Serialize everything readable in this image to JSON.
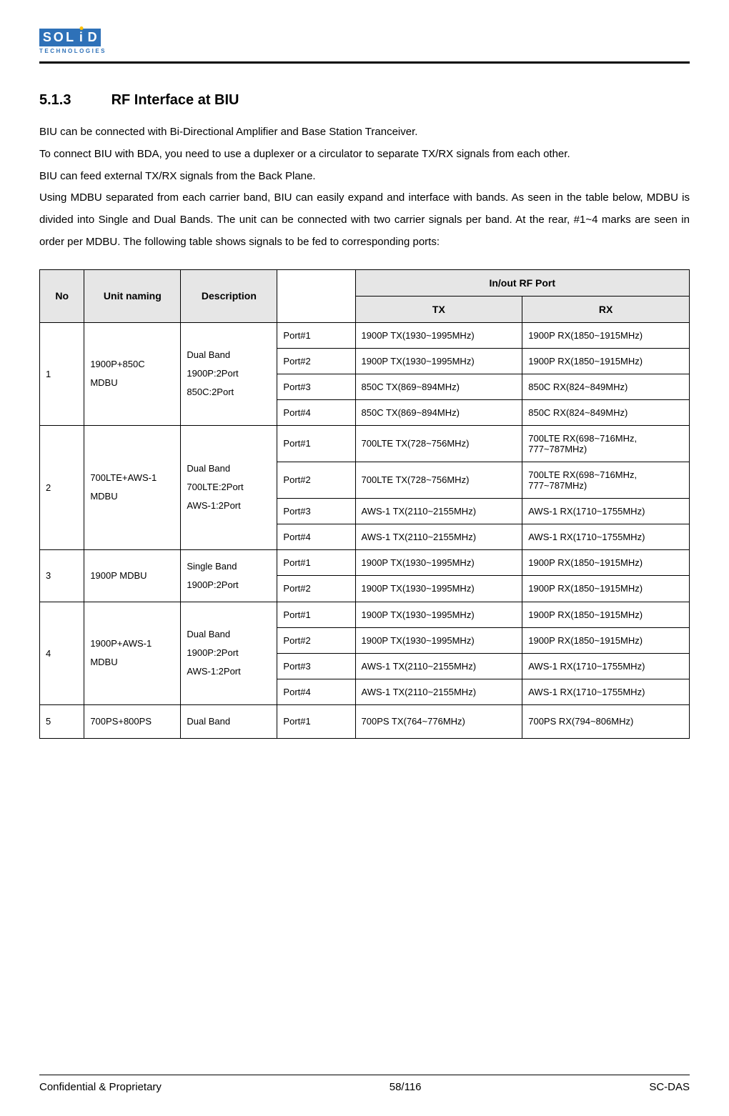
{
  "logo": {
    "letters": [
      "S",
      "O",
      "L",
      "i",
      "D"
    ],
    "sub": "TECHNOLOGIES"
  },
  "section": {
    "num": "5.1.3",
    "title": "RF Interface at BIU"
  },
  "paragraph": "BIU can be connected with Bi-Directional Amplifier and Base Station Tranceiver.\nTo connect BIU with BDA, you need to use a duplexer or a circulator to separate TX/RX signals from each other.\nBIU can feed external TX/RX signals from the Back Plane.\nUsing MDBU separated from each carrier band, BIU can easily expand and interface with bands. As seen in the table below, MDBU is divided into Single and Dual Bands. The unit can be connected with two carrier signals per band. At the rear, #1~4 marks are seen in order per MDBU. The following table shows signals to be fed to corresponding ports:",
  "table": {
    "head": {
      "no": "No",
      "unit": "Unit naming",
      "desc": "Description",
      "inout": "In/out RF Port",
      "tx": "TX",
      "rx": "RX"
    },
    "groups": [
      {
        "no": "1",
        "unit": "1900P+850C MDBU",
        "desc": "Dual Band\n1900P:2Port\n850C:2Port",
        "rows": [
          {
            "port": "Port#1",
            "tx": "1900P TX(1930~1995MHz)",
            "rx": "1900P RX(1850~1915MHz)"
          },
          {
            "port": "Port#2",
            "tx": "1900P TX(1930~1995MHz)",
            "rx": "1900P RX(1850~1915MHz)"
          },
          {
            "port": "Port#3",
            "tx": "850C TX(869~894MHz)",
            "rx": "850C RX(824~849MHz)"
          },
          {
            "port": "Port#4",
            "tx": "850C TX(869~894MHz)",
            "rx": "850C RX(824~849MHz)"
          }
        ]
      },
      {
        "no": "2",
        "unit": "700LTE+AWS-1 MDBU",
        "desc": "Dual Band\n700LTE:2Port\nAWS-1:2Port",
        "rows": [
          {
            "port": "Port#1",
            "tx": "700LTE TX(728~756MHz)",
            "rx": "700LTE  RX(698~716MHz, 777~787MHz)"
          },
          {
            "port": "Port#2",
            "tx": "700LTE TX(728~756MHz)",
            "rx": "700LTE  RX(698~716MHz, 777~787MHz)"
          },
          {
            "port": "Port#3",
            "tx": "AWS-1 TX(2110~2155MHz)",
            "rx": "AWS-1 RX(1710~1755MHz)"
          },
          {
            "port": "Port#4",
            "tx": "AWS-1 TX(2110~2155MHz)",
            "rx": "AWS-1 RX(1710~1755MHz)"
          }
        ]
      },
      {
        "no": "3",
        "unit": "1900P MDBU",
        "desc": "Single Band\n1900P:2Port",
        "rows": [
          {
            "port": "Port#1",
            "tx": "1900P TX(1930~1995MHz)",
            "rx": "1900P RX(1850~1915MHz)"
          },
          {
            "port": "Port#2",
            "tx": "1900P TX(1930~1995MHz)",
            "rx": "1900P RX(1850~1915MHz)"
          }
        ]
      },
      {
        "no": "4",
        "unit": "1900P+AWS-1 MDBU",
        "desc": "Dual Band\n1900P:2Port\nAWS-1:2Port",
        "rows": [
          {
            "port": "Port#1",
            "tx": "1900P TX(1930~1995MHz)",
            "rx": "1900P RX(1850~1915MHz)"
          },
          {
            "port": "Port#2",
            "tx": "1900P TX(1930~1995MHz)",
            "rx": "1900P RX(1850~1915MHz)"
          },
          {
            "port": "Port#3",
            "tx": "AWS-1 TX(2110~2155MHz)",
            "rx": "AWS-1 RX(1710~1755MHz)"
          },
          {
            "port": "Port#4",
            "tx": "AWS-1 TX(2110~2155MHz)",
            "rx": "AWS-1 RX(1710~1755MHz)"
          }
        ]
      },
      {
        "no": "5",
        "unit": "700PS+800PS",
        "desc": "Dual Band",
        "rows": [
          {
            "port": "Port#1",
            "tx": "700PS TX(764~776MHz)",
            "rx": "700PS RX(794~806MHz)"
          }
        ]
      }
    ]
  },
  "footer": {
    "left": "Confidential & Proprietary",
    "center": "58/116",
    "right": "SC-DAS"
  },
  "col_widths": [
    "60px",
    "130px",
    "130px",
    "105px",
    "225px",
    "225px"
  ]
}
